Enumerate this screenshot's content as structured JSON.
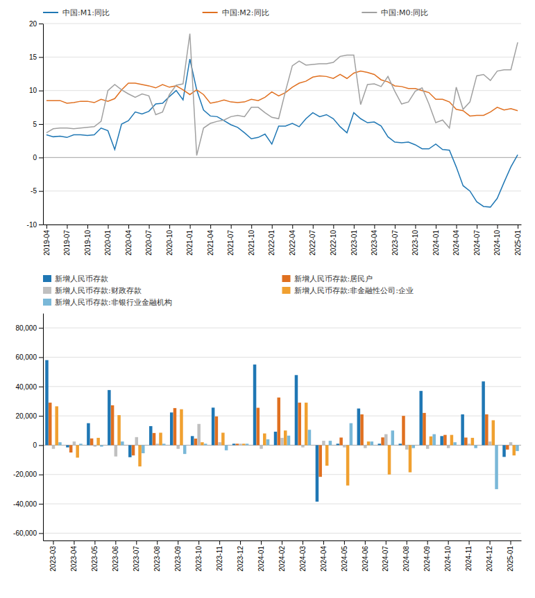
{
  "chart_data": [
    {
      "type": "line",
      "categories": [
        "2019-04",
        null,
        null,
        "2019-07",
        null,
        null,
        "2019-10",
        null,
        null,
        "2020-01",
        null,
        null,
        "2020-04",
        null,
        null,
        "2020-07",
        null,
        null,
        "2020-10",
        null,
        null,
        "2021-01",
        null,
        null,
        "2021-04",
        null,
        null,
        "2021-07",
        null,
        null,
        "2021-10",
        null,
        null,
        "2022-01",
        null,
        null,
        "2022-04",
        null,
        null,
        "2022-07",
        null,
        null,
        "2022-10",
        null,
        null,
        "2023-01",
        null,
        null,
        "2023-04",
        null,
        null,
        "2023-07",
        null,
        null,
        "2023-10",
        null,
        null,
        "2024-01",
        null,
        null,
        "2024-04",
        null,
        null,
        "2024-07",
        null,
        null,
        "2024-10",
        null,
        null,
        "2025-01"
      ],
      "series": [
        {
          "name": "中国:M1:同比",
          "color": "#1f77b4",
          "values": [
            3.4,
            3.1,
            3.2,
            3.0,
            3.4,
            3.4,
            3.3,
            3.4,
            4.4,
            4.0,
            1.2,
            5.0,
            5.5,
            6.8,
            6.5,
            6.9,
            8.0,
            8.1,
            9.1,
            10.0,
            8.6,
            14.7,
            10.1,
            7.1,
            6.2,
            6.1,
            5.5,
            4.9,
            4.5,
            3.7,
            2.8,
            3.0,
            3.5,
            2.0,
            4.7,
            4.7,
            5.1,
            4.6,
            5.8,
            6.7,
            6.1,
            6.4,
            5.8,
            4.6,
            3.7,
            6.7,
            5.8,
            5.2,
            5.3,
            4.7,
            3.1,
            2.3,
            2.2,
            2.3,
            1.9,
            1.3,
            1.3,
            2.0,
            1.2,
            1.1,
            -1.4,
            -4.2,
            -5.0,
            -6.6,
            -7.3,
            -7.4,
            -6.1,
            -3.7,
            -1.4,
            0.4
          ]
        },
        {
          "name": "中国:M2:同比",
          "color": "#e07020",
          "values": [
            8.5,
            8.5,
            8.5,
            8.1,
            8.2,
            8.4,
            8.4,
            8.2,
            8.7,
            8.4,
            8.8,
            10.1,
            11.1,
            11.1,
            10.9,
            10.7,
            10.4,
            10.9,
            10.5,
            10.7,
            10.1,
            9.4,
            10.1,
            9.4,
            8.1,
            8.3,
            8.6,
            8.3,
            8.2,
            8.3,
            8.7,
            8.5,
            9.0,
            9.8,
            9.2,
            9.7,
            10.5,
            11.1,
            11.4,
            12.0,
            12.2,
            12.1,
            11.8,
            12.4,
            11.8,
            12.6,
            12.9,
            12.7,
            12.4,
            11.6,
            11.3,
            10.7,
            10.6,
            10.3,
            10.3,
            10.0,
            9.7,
            8.7,
            8.7,
            8.3,
            7.2,
            7.0,
            6.2,
            6.3,
            6.3,
            6.8,
            7.5,
            7.1,
            7.3,
            7.0
          ]
        },
        {
          "name": "中国:M0:同比",
          "color": "#a0a0a0",
          "values": [
            3.7,
            4.3,
            4.4,
            4.4,
            4.3,
            4.4,
            4.5,
            4.6,
            5.4,
            10.0,
            10.9,
            10.1,
            9.5,
            9.0,
            9.5,
            9.2,
            6.4,
            6.8,
            9.4,
            10.8,
            11.0,
            18.5,
            0.3,
            4.4,
            5.1,
            5.4,
            5.6,
            6.1,
            6.3,
            6.1,
            7.5,
            7.5,
            6.7,
            6.0,
            5.8,
            9.9,
            13.7,
            14.4,
            13.8,
            13.9,
            14.0,
            14.0,
            14.2,
            15.1,
            15.3,
            15.3,
            7.9,
            10.9,
            11.0,
            10.6,
            12.1,
            9.9,
            8.0,
            8.3,
            9.9,
            10.4,
            8.0,
            5.2,
            5.6,
            4.4,
            10.5,
            7.2,
            8.3,
            12.2,
            12.4,
            11.5,
            12.9,
            13.1,
            13.1,
            17.2
          ]
        }
      ],
      "ylim": [
        -10,
        20
      ],
      "yticks": [
        -10,
        -5,
        0,
        5,
        10,
        15,
        20
      ],
      "grid": true,
      "legend": "top-left"
    },
    {
      "type": "bar",
      "categories": [
        "2023-03",
        "2023-04",
        "2023-05",
        "2023-06",
        "2023-07",
        "2023-08",
        "2023-09",
        "2023-10",
        "2023-11",
        "2023-12",
        "2024-01",
        "2024-02",
        "2024-03",
        "2024-04",
        "2024-05",
        "2024-06",
        "2024-07",
        "2024-08",
        "2024-09",
        "2024-10",
        "2024-11",
        "2024-12",
        "2025-01"
      ],
      "series": [
        {
          "name": "新增人民币存款",
          "color": "#1f77b4",
          "values": [
            58000,
            -1500,
            15000,
            37600,
            -8200,
            13000,
            22300,
            6200,
            25600,
            1000,
            55000,
            9200,
            47800,
            -38500,
            1000,
            25000,
            1000,
            1000,
            37000,
            6200,
            21000,
            43500,
            -8000
          ]
        },
        {
          "name": "新增人民币存款:居民户",
          "color": "#e07020",
          "values": [
            29000,
            -5000,
            4600,
            27200,
            -7000,
            8300,
            25300,
            4500,
            19600,
            1000,
            25500,
            32500,
            29000,
            -21600,
            5200,
            21000,
            5300,
            20000,
            22000,
            7000,
            5200,
            21000,
            -3000
          ]
        },
        {
          "name": "新增人民币存款:财政存款",
          "color": "#c0c0c0",
          "values": [
            -2500,
            2500,
            -1000,
            -7700,
            5500,
            1000,
            -2500,
            14500,
            2000,
            1000,
            -2500,
            5000,
            -1500,
            3000,
            -1500,
            -2000,
            7500,
            -3000,
            -2500,
            -2000,
            1000,
            2500,
            2000
          ]
        },
        {
          "name": "新增人民币存款:非金融性公司:企业",
          "color": "#f0a030",
          "values": [
            26500,
            -8500,
            5000,
            20500,
            -14500,
            8500,
            24500,
            2000,
            8500,
            1000,
            8000,
            10000,
            29000,
            -14000,
            -27500,
            2500,
            -20000,
            -18500,
            6000,
            7000,
            5000,
            17000,
            -7000
          ]
        },
        {
          "name": "新增人民币存款:非银行业金融机构",
          "color": "#7ab8d8",
          "values": [
            2000,
            1000,
            -1000,
            2500,
            -5500,
            1000,
            -6000,
            1000,
            -3500,
            1000,
            4000,
            6500,
            10500,
            3000,
            15000,
            2500,
            10000,
            -2000,
            7500,
            2000,
            -2000,
            -30000,
            -4000
          ]
        }
      ],
      "ylim": [
        -65000,
        90000
      ],
      "yticks": [
        {
          "value": -60000,
          "label": "-60,000"
        },
        {
          "value": -40000,
          "label": "-40,000"
        },
        {
          "value": -20000,
          "label": "-20,000"
        },
        0,
        {
          "value": 20000,
          "label": "20,000"
        },
        {
          "value": 40000,
          "label": "40,000"
        },
        {
          "value": 60000,
          "label": "60,000"
        },
        {
          "value": 80000,
          "label": "80,000"
        }
      ],
      "grid": true,
      "legend": "top-left"
    }
  ]
}
